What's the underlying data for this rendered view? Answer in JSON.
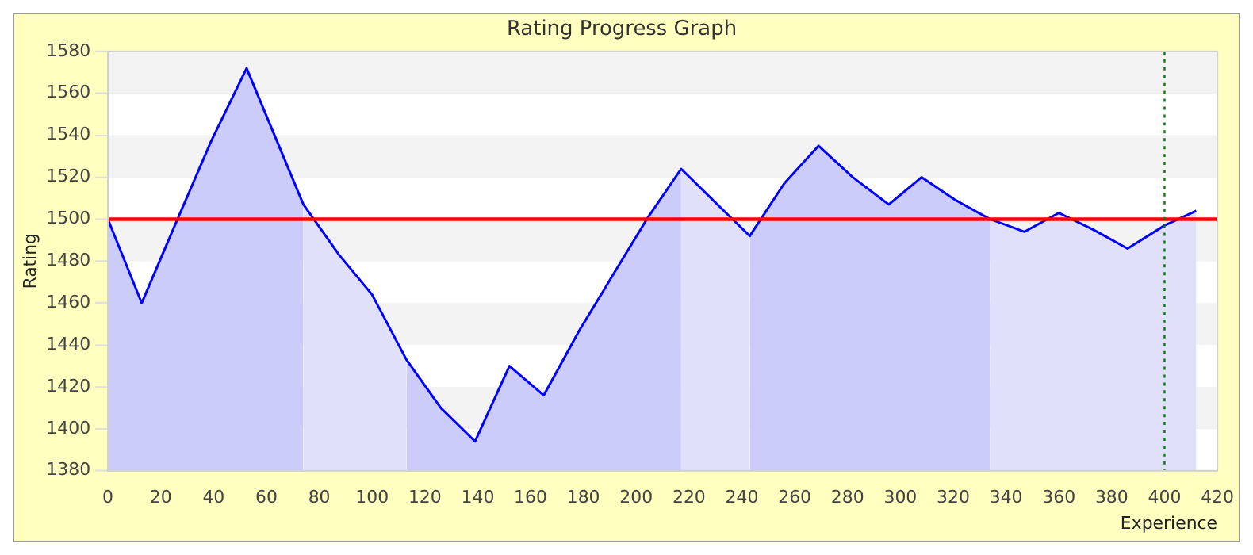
{
  "chart_data": {
    "type": "line",
    "title": "Rating Progress Graph",
    "xlabel": "Experience",
    "ylabel": "Rating",
    "x": [
      0,
      12.8,
      26,
      39,
      52.5,
      74,
      87.5,
      100,
      113,
      126,
      139,
      152,
      165,
      178.5,
      191,
      204,
      217,
      234,
      243,
      256,
      269,
      282,
      295.6,
      308,
      321,
      334,
      347,
      360,
      373,
      386,
      400,
      412
    ],
    "series": [
      {
        "color": "#0000ff",
        "values": [
          1500,
          1460,
          1499,
          1537,
          1572,
          1507,
          1483,
          1464,
          1433,
          1410,
          1394,
          1430,
          1416,
          1447,
          1473,
          1500,
          1524,
          1503,
          1492,
          1517,
          1535,
          1520,
          1507,
          1520,
          1509,
          1500,
          1494,
          1503,
          1495,
          1486,
          1497,
          1504
        ]
      },
      {
        "type": "area",
        "color": "#ccccfa",
        "x": [
          0,
          12.8,
          26,
          39,
          52.5,
          74
        ],
        "values": [
          1500,
          1460,
          1499,
          1537,
          1572,
          1507
        ]
      },
      {
        "type": "area",
        "color": "#e0e0fa",
        "x": [
          74,
          87.5,
          100,
          113
        ],
        "values": [
          1507,
          1483,
          1464,
          1433
        ]
      },
      {
        "type": "area",
        "color": "#ccccfa",
        "x": [
          113,
          126,
          139,
          152,
          165,
          178.5,
          191,
          204,
          217
        ],
        "values": [
          1433,
          1410,
          1394,
          1430,
          1416,
          1447,
          1473,
          1500,
          1524
        ]
      },
      {
        "type": "area",
        "color": "#e0e0fa",
        "x": [
          217,
          234,
          243
        ],
        "values": [
          1524,
          1503,
          1492
        ]
      },
      {
        "type": "area",
        "color": "#ccccfa",
        "x": [
          243,
          256,
          269,
          282,
          295.6,
          308,
          321,
          334
        ],
        "values": [
          1492,
          1517,
          1535,
          1520,
          1507,
          1520,
          1509,
          1500
        ]
      },
      {
        "type": "area",
        "color": "#e0e0fa",
        "x": [
          334,
          347,
          360,
          373,
          386,
          400,
          412
        ],
        "values": [
          1500,
          1494,
          1503,
          1495,
          1486,
          1497,
          1504
        ]
      }
    ],
    "xlim": [
      0,
      420
    ],
    "xticks": [
      0,
      20,
      40,
      60,
      80,
      100,
      120,
      140,
      160,
      180,
      200,
      220,
      240,
      260,
      280,
      300,
      320,
      340,
      360,
      380,
      400,
      420
    ],
    "ylim": [
      1380,
      1580
    ],
    "yticks": [
      1380,
      1400,
      1420,
      1440,
      1460,
      1480,
      1500,
      1520,
      1540,
      1560,
      1580
    ],
    "grid": "y",
    "legend": false,
    "marker": "none",
    "line_style": "solid",
    "ref_lines": [
      {
        "axis": "y",
        "value": 1500,
        "color": "#ff0000",
        "line_style": "solid"
      },
      {
        "axis": "x",
        "value": 400,
        "color": "#008000",
        "line_style": "dotted"
      }
    ]
  }
}
